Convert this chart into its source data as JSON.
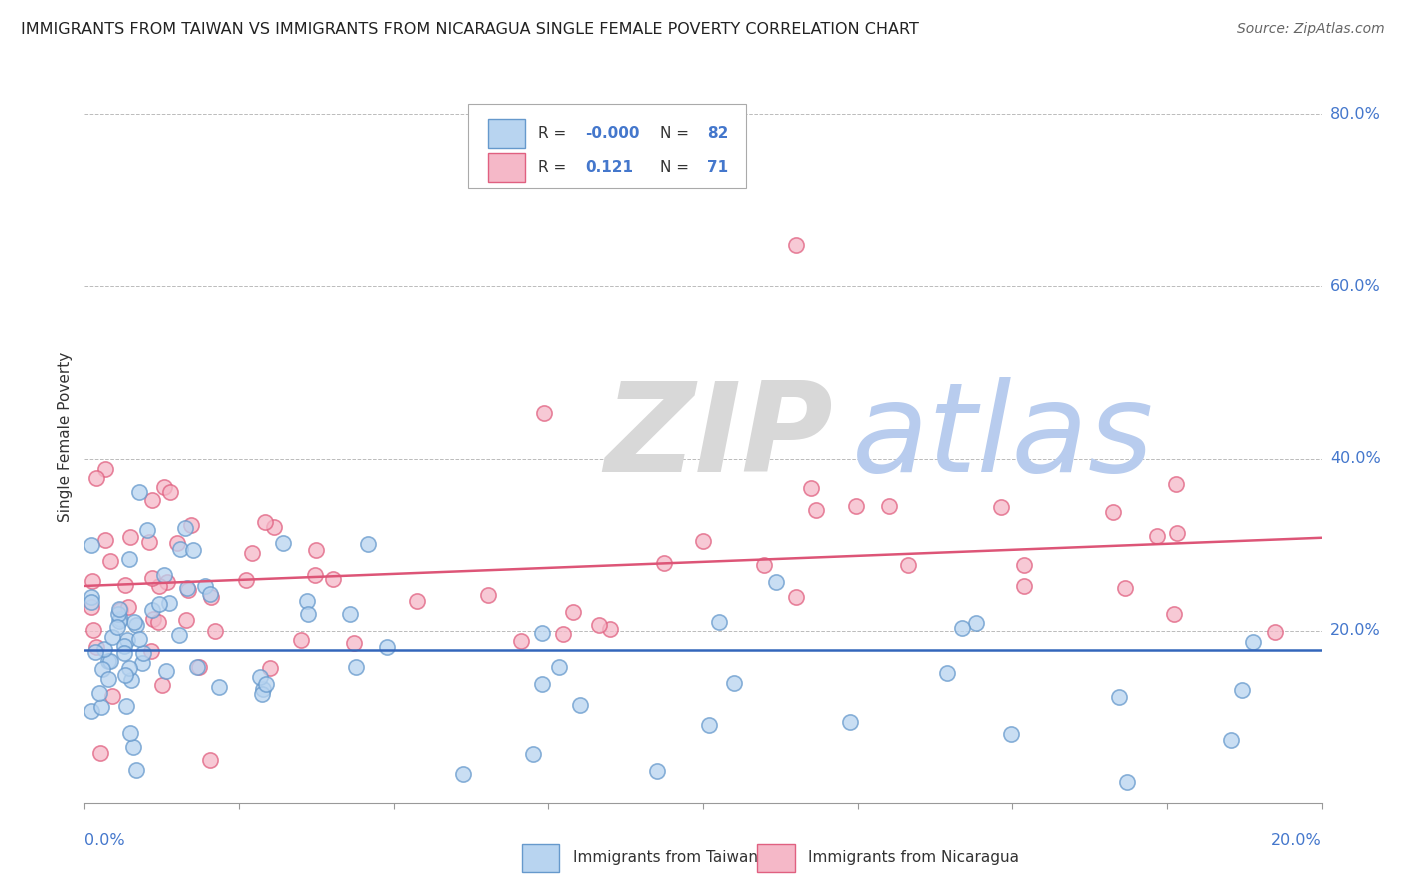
{
  "title": "IMMIGRANTS FROM TAIWAN VS IMMIGRANTS FROM NICARAGUA SINGLE FEMALE POVERTY CORRELATION CHART",
  "source": "Source: ZipAtlas.com",
  "ylabel": "Single Female Poverty",
  "legend_taiwan_R": "-0.000",
  "legend_taiwan_N": "82",
  "legend_nicaragua_R": "0.121",
  "legend_nicaragua_N": "71",
  "taiwan_face_color": "#b8d4f0",
  "taiwan_edge_color": "#6699cc",
  "nicaragua_face_color": "#f5b8c8",
  "nicaragua_edge_color": "#e06080",
  "taiwan_line_color": "#3366bb",
  "nicaragua_line_color": "#dd5577",
  "background_color": "#ffffff",
  "grid_color": "#bbbbbb",
  "axis_label_color": "#4477cc",
  "watermark_zip_color": "#d8d8d8",
  "watermark_atlas_color": "#b8ccee",
  "xlim": [
    0.0,
    0.2
  ],
  "ylim": [
    0.0,
    0.85
  ],
  "taiwan_line_y": 0.178,
  "nicaragua_line_y0": 0.252,
  "nicaragua_line_y1": 0.308
}
